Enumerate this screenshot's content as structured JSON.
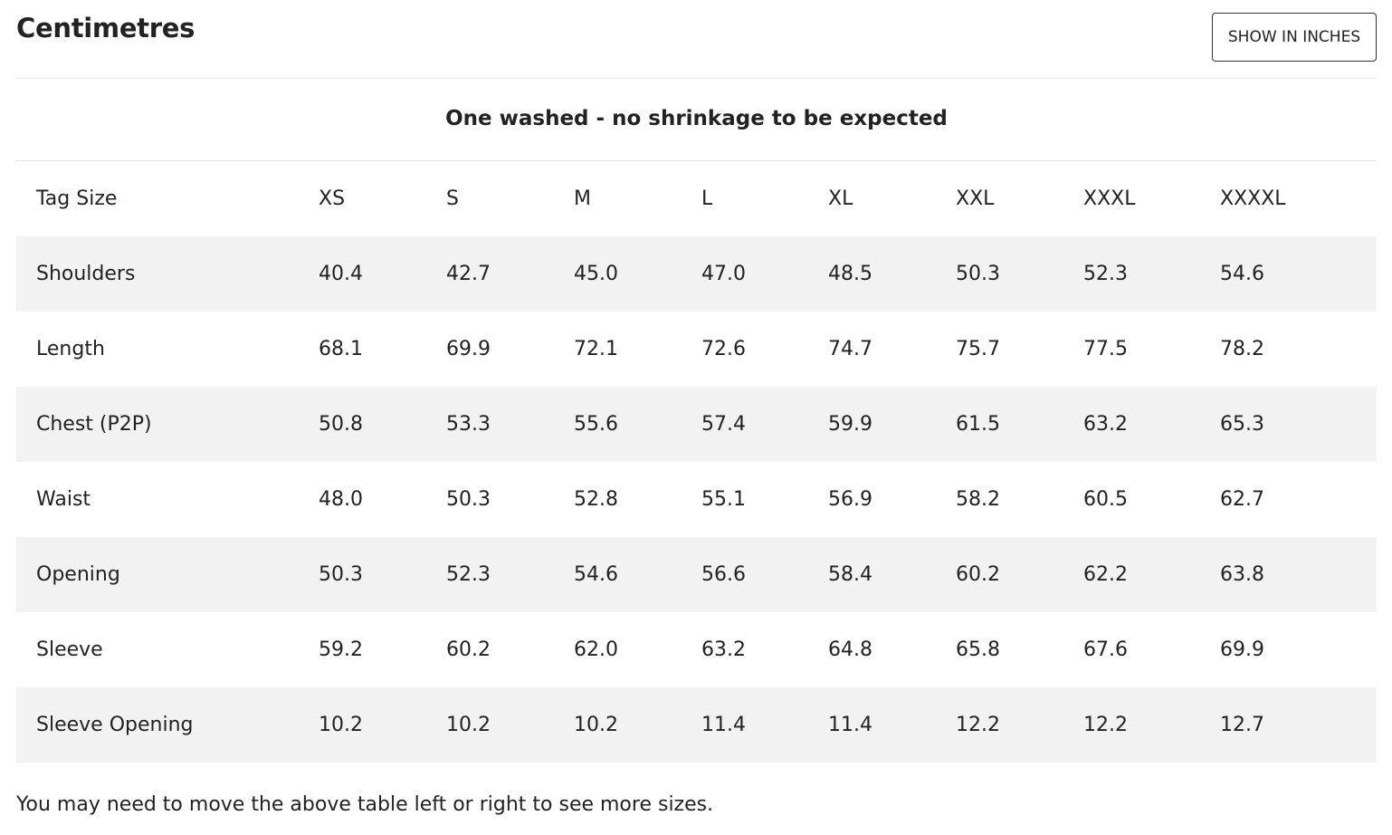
{
  "header": {
    "title": "Centimetres",
    "toggle_label": "SHOW IN INCHES"
  },
  "notice": "One washed - no shrinkage to be expected",
  "table": {
    "columns": [
      "Tag Size",
      "XS",
      "S",
      "M",
      "L",
      "XL",
      "XXL",
      "XXXL",
      "XXXXL"
    ],
    "rows": [
      [
        "Shoulders",
        "40.4",
        "42.7",
        "45.0",
        "47.0",
        "48.5",
        "50.3",
        "52.3",
        "54.6"
      ],
      [
        "Length",
        "68.1",
        "69.9",
        "72.1",
        "72.6",
        "74.7",
        "75.7",
        "77.5",
        "78.2"
      ],
      [
        "Chest (P2P)",
        "50.8",
        "53.3",
        "55.6",
        "57.4",
        "59.9",
        "61.5",
        "63.2",
        "65.3"
      ],
      [
        "Waist",
        "48.0",
        "50.3",
        "52.8",
        "55.1",
        "56.9",
        "58.2",
        "60.5",
        "62.7"
      ],
      [
        "Opening",
        "50.3",
        "52.3",
        "54.6",
        "56.6",
        "58.4",
        "60.2",
        "62.2",
        "63.8"
      ],
      [
        "Sleeve",
        "59.2",
        "60.2",
        "62.0",
        "63.2",
        "64.8",
        "65.8",
        "67.6",
        "69.9"
      ],
      [
        "Sleeve Opening",
        "10.2",
        "10.2",
        "10.2",
        "11.4",
        "11.4",
        "12.2",
        "12.2",
        "12.7"
      ]
    ]
  },
  "footnote": "You may need to move the above table left or right to see more sizes."
}
